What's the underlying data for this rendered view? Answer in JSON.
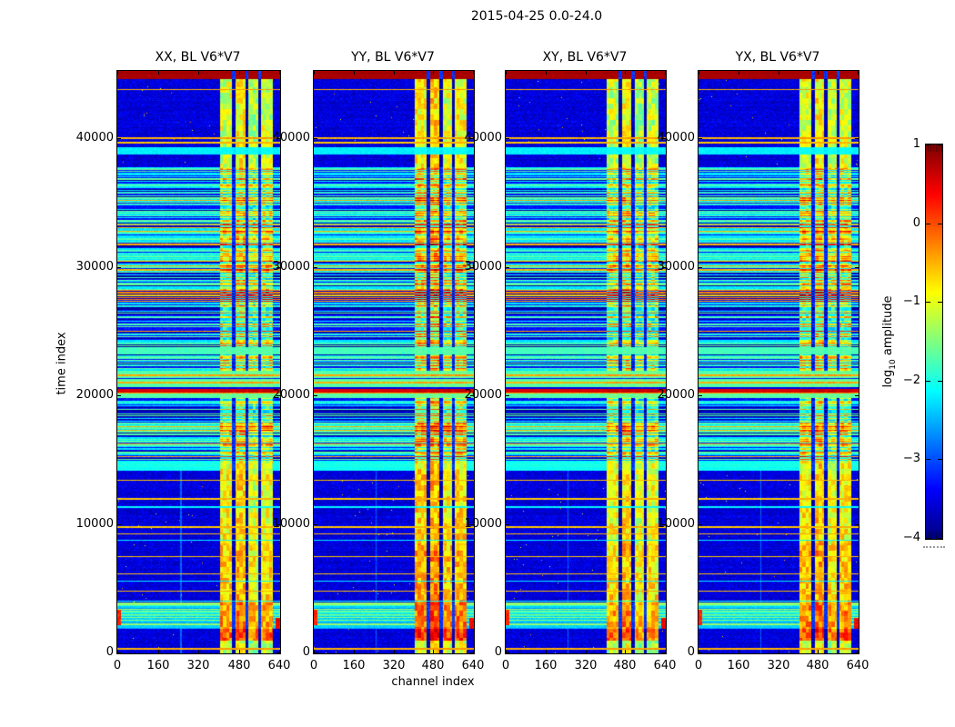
{
  "figure": {
    "suptitle": "2015-04-25 0.0-24.0",
    "background": "#ffffff",
    "text_color": "#000000"
  },
  "chart_data": {
    "type": "heatmap",
    "suptitle": "2015-04-25 0.0-24.0",
    "xlabel": "channel index",
    "ylabel": "time index",
    "colormap": "jet",
    "x_range": [
      0,
      640
    ],
    "y_range": [
      0,
      45230
    ],
    "grid": false,
    "x_ticks": {
      "values": [
        0,
        160,
        320,
        480,
        640
      ],
      "labels": [
        "0",
        "160",
        "320",
        "480",
        "640"
      ]
    },
    "y_ticks": {
      "values": [
        0,
        10000,
        20000,
        30000,
        40000
      ],
      "labels": [
        "0",
        "10000",
        "20000",
        "30000",
        "40000"
      ]
    },
    "panels": [
      {
        "title": "XX, BL V6*V7",
        "seed": 101,
        "band_bias": 0.0
      },
      {
        "title": "YY, BL V6*V7",
        "seed": 202,
        "band_bias": 0.22
      },
      {
        "title": "XY, BL V6*V7",
        "seed": 303,
        "band_bias": -0.05
      },
      {
        "title": "YX, BL V6*V7",
        "seed": 404,
        "band_bias": 0.08
      }
    ],
    "colorbar": {
      "label_prefix": "log",
      "label_sub": "10",
      "label_suffix": " amplitude",
      "vmin": -4,
      "vmax": 1,
      "ticks": {
        "values": [
          1,
          0,
          -1,
          -2,
          -3,
          -4
        ],
        "labels": [
          "1",
          "0",
          "−1",
          "−2",
          "−3",
          "−4"
        ]
      }
    },
    "structure": {
      "tmax": 45230,
      "band": {
        "start": 404,
        "end": 612,
        "gaps": [
          [
            452,
            466
          ],
          [
            504,
            516
          ],
          [
            554,
            566
          ]
        ],
        "subcols": [
          [
            404,
            452
          ],
          [
            466,
            504
          ],
          [
            516,
            554
          ],
          [
            566,
            612
          ]
        ],
        "sub_offsets": [
          0.1,
          0.28,
          -0.08,
          0.05
        ]
      },
      "faint_column": {
        "ch": [
          246,
          252
        ],
        "t_max": 14150,
        "v": -2.9
      },
      "regions": [
        {
          "t0": 44650,
          "t1": 45230,
          "type": "saturated",
          "base": 0.82
        },
        {
          "t0": 37750,
          "t1": 44650,
          "type": "noise",
          "base": -3.55
        },
        {
          "t0": 28250,
          "t1": 37750,
          "type": "stripes",
          "bright": 0.62,
          "orange": 0.07
        },
        {
          "t0": 27450,
          "t1": 28250,
          "type": "redcluster"
        },
        {
          "t0": 21950,
          "t1": 27450,
          "type": "stripes",
          "bright": 0.46,
          "orange": 0.05
        },
        {
          "t0": 19750,
          "t1": 21950,
          "type": "noise",
          "base": -3.45
        },
        {
          "t0": 14950,
          "t1": 19750,
          "type": "stripes",
          "bright": 0.52,
          "orange": 0.05
        },
        {
          "t0": 14150,
          "t1": 14950,
          "type": "flat",
          "base": -2.05
        },
        {
          "t0": 3950,
          "t1": 14150,
          "type": "noise",
          "base": -3.55
        },
        {
          "t0": 1900,
          "t1": 3950,
          "type": "active"
        },
        {
          "t0": 0,
          "t1": 1900,
          "type": "noise",
          "base": -3.55
        }
      ],
      "lines": [
        [
          43750,
          43860,
          -0.5
        ],
        [
          40000,
          40110,
          -0.5
        ],
        [
          39640,
          39760,
          -0.6
        ],
        [
          38750,
          39350,
          -2.2
        ],
        [
          23250,
          23800,
          -1.8
        ],
        [
          19850,
          21950,
          -1.7
        ],
        [
          21550,
          21650,
          -0.45
        ],
        [
          21280,
          21380,
          -3.4
        ],
        [
          20980,
          21080,
          -0.5
        ],
        [
          20560,
          20660,
          -3.5
        ],
        [
          20280,
          20500,
          0.55
        ],
        [
          20180,
          20260,
          -0.4
        ],
        [
          13380,
          13480,
          -0.6
        ],
        [
          11940,
          12050,
          -0.6
        ],
        [
          11300,
          11400,
          -2.15
        ],
        [
          9750,
          9860,
          -0.6
        ],
        [
          9190,
          9300,
          -0.55
        ],
        [
          8700,
          8800,
          -2.2
        ],
        [
          7430,
          7540,
          -0.6
        ],
        [
          6090,
          6200,
          -0.6
        ],
        [
          5530,
          5630,
          -2.2
        ],
        [
          4740,
          4850,
          -0.55
        ],
        [
          3960,
          4080,
          -2.1
        ],
        [
          280,
          420,
          -0.5
        ]
      ],
      "edge_blobs": [
        {
          "t": [
            2150,
            3350
          ],
          "ch": [
            0,
            14
          ],
          "v": 0.2
        },
        {
          "t": [
            1900,
            2750
          ],
          "ch": [
            624,
            640
          ],
          "v": 0.42
        }
      ]
    }
  }
}
